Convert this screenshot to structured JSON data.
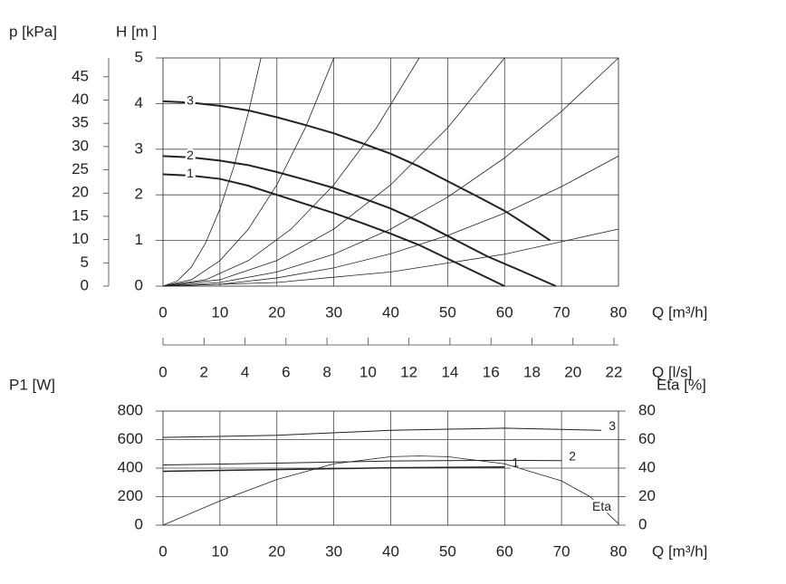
{
  "chart_data": [
    {
      "type": "line",
      "x_label": "Q [m³/h]",
      "y_label": "H [m ]",
      "y2_label": "p [kPa]",
      "y2_side": "left",
      "xlim": [
        0,
        80
      ],
      "xticks": [
        0,
        10,
        20,
        30,
        40,
        50,
        60,
        70,
        80
      ],
      "ylim": [
        0,
        5
      ],
      "yticks": [
        0,
        1,
        2,
        3,
        4,
        5
      ],
      "y2lim": [
        0,
        49.05
      ],
      "y2ticks": [
        0,
        5,
        10,
        15,
        20,
        25,
        30,
        35,
        40,
        45
      ],
      "grid": true,
      "series": [
        {
          "name": "1",
          "color": "#222",
          "linewidth": 2,
          "x": [
            0,
            5,
            10,
            15,
            20,
            25,
            30,
            35,
            40,
            45,
            50,
            55,
            60
          ],
          "values": [
            2.45,
            2.42,
            2.35,
            2.2,
            2.0,
            1.8,
            1.6,
            1.38,
            1.15,
            0.9,
            0.6,
            0.3,
            0
          ]
        },
        {
          "name": "2",
          "color": "#222",
          "linewidth": 2,
          "x": [
            0,
            5,
            10,
            15,
            20,
            25,
            30,
            35,
            40,
            45,
            50,
            57,
            63,
            69
          ],
          "values": [
            2.85,
            2.82,
            2.75,
            2.65,
            2.5,
            2.33,
            2.15,
            1.93,
            1.7,
            1.42,
            1.1,
            0.65,
            0.33,
            0
          ]
        },
        {
          "name": "3",
          "color": "#222",
          "linewidth": 2,
          "x": [
            0,
            5,
            10,
            15,
            20,
            25,
            30,
            35,
            40,
            45,
            50,
            55,
            60,
            65,
            68
          ],
          "values": [
            4.05,
            4.02,
            3.95,
            3.85,
            3.7,
            3.53,
            3.35,
            3.13,
            2.9,
            2.62,
            2.3,
            1.98,
            1.65,
            1.25,
            1.0
          ]
        },
        {
          "color": "#222",
          "linewidth": 0.8,
          "x": [
            0,
            2.5,
            5,
            7.5,
            10,
            12.5,
            15,
            17.2
          ],
          "values": [
            0,
            0.11,
            0.42,
            0.95,
            1.69,
            2.64,
            3.8,
            5
          ]
        },
        {
          "color": "#222",
          "linewidth": 0.8,
          "x": [
            0,
            5,
            10,
            15,
            20,
            25,
            30
          ],
          "values": [
            0,
            0.14,
            0.56,
            1.25,
            2.22,
            3.47,
            5
          ]
        },
        {
          "color": "#222",
          "linewidth": 0.8,
          "x": [
            0,
            7.5,
            15,
            22.5,
            30,
            37.5,
            45
          ],
          "values": [
            0,
            0.14,
            0.56,
            1.25,
            2.22,
            3.47,
            5
          ]
        },
        {
          "color": "#222",
          "linewidth": 0.8,
          "x": [
            0,
            10,
            20,
            30,
            40,
            50,
            60
          ],
          "values": [
            0,
            0.14,
            0.56,
            1.25,
            2.22,
            3.47,
            5
          ]
        },
        {
          "color": "#222",
          "linewidth": 0.8,
          "x": [
            0,
            10,
            20,
            30,
            40,
            50,
            60,
            70,
            80
          ],
          "values": [
            0,
            0.08,
            0.31,
            0.7,
            1.25,
            1.95,
            2.81,
            3.83,
            5
          ]
        },
        {
          "color": "#222",
          "linewidth": 0.8,
          "x": [
            0,
            10,
            20,
            30,
            40,
            50,
            60,
            70,
            80
          ],
          "values": [
            0,
            0.04,
            0.18,
            0.4,
            0.71,
            1.11,
            1.6,
            2.18,
            2.85
          ]
        },
        {
          "color": "#222",
          "linewidth": 0.8,
          "x": [
            0,
            20,
            40,
            60,
            80
          ],
          "values": [
            0,
            0.08,
            0.31,
            0.7,
            1.25
          ]
        }
      ]
    },
    {
      "type": "axis",
      "x_label": "Q [l/s]",
      "xlim": [
        0,
        22.22
      ],
      "xticks": [
        0,
        2,
        4,
        6,
        8,
        10,
        12,
        14,
        16,
        18,
        20,
        22
      ]
    },
    {
      "type": "line",
      "x_label": "Q [m³/h]",
      "y_label": "P1 [W]",
      "y2_label": "Eta [%]",
      "y2_side": "right",
      "xlim": [
        0,
        80
      ],
      "xticks": [
        0,
        10,
        20,
        30,
        40,
        50,
        60,
        70,
        80
      ],
      "ylim": [
        0,
        800
      ],
      "yticks": [
        0,
        200,
        400,
        600,
        800
      ],
      "y2lim": [
        0,
        80
      ],
      "y2ticks": [
        0,
        20,
        40,
        60,
        80
      ],
      "grid": true,
      "series": [
        {
          "name": "1",
          "color": "#222",
          "linewidth": 1.5,
          "x": [
            0,
            20,
            40,
            60
          ],
          "values": [
            378,
            390,
            402,
            408
          ]
        },
        {
          "name": "2",
          "color": "#222",
          "linewidth": 1,
          "x": [
            0,
            20,
            40,
            60,
            70
          ],
          "values": [
            422,
            435,
            450,
            455,
            452
          ]
        },
        {
          "name": "3",
          "color": "#222",
          "linewidth": 1,
          "x": [
            0,
            20,
            40,
            60,
            77
          ],
          "values": [
            615,
            630,
            665,
            680,
            665
          ]
        },
        {
          "name": "Eta",
          "axis": "y2",
          "color": "#222",
          "linewidth": 0.8,
          "x": [
            0,
            10,
            20,
            30,
            40,
            45,
            50,
            60,
            70,
            75,
            80
          ],
          "values": [
            0,
            17,
            32,
            43,
            48,
            48.5,
            48,
            43,
            31,
            20,
            1
          ]
        }
      ]
    }
  ]
}
